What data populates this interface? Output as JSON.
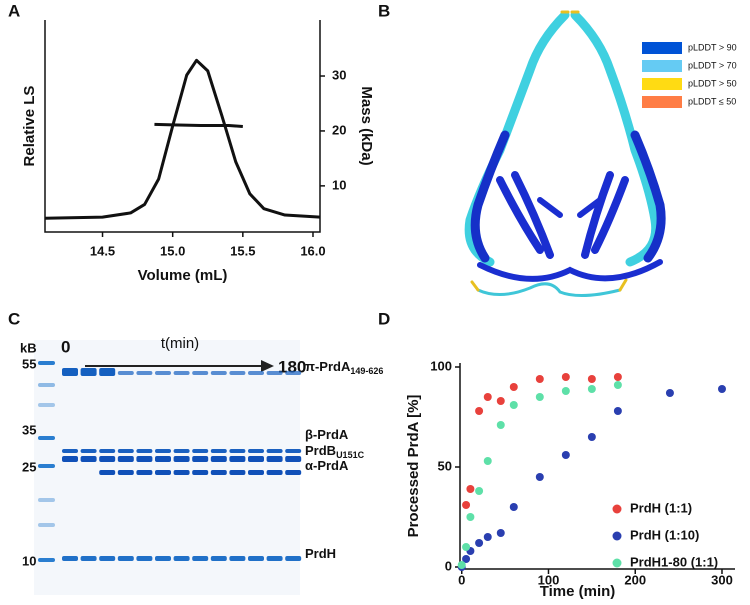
{
  "panels": [
    "A",
    "B",
    "C",
    "D"
  ],
  "chart_data": [
    {
      "type": "line",
      "x_label": "Volume (mL)",
      "y_label": "Relative LS",
      "y2_label": "Mass (kDa)",
      "xlim": [
        14.09,
        16.05
      ],
      "xticks": [
        {
          "value": 14.5,
          "label": "14.5"
        },
        {
          "value": 15.0,
          "label": "15.0"
        },
        15.5,
        {
          "value": 16.0,
          "label": "16.0"
        }
      ],
      "ylim": [
        0,
        1
      ],
      "y2lim": [
        1.6,
        40.2
      ],
      "y2ticks": [
        10,
        20,
        30
      ],
      "color": "#111111",
      "series": [
        {
          "x": [
            14.09,
            14.5,
            14.7,
            14.8,
            14.9,
            15.0,
            15.1,
            15.17,
            15.25,
            15.35,
            15.45,
            15.55,
            15.65,
            15.8,
            16.05
          ],
          "values": [
            0.065,
            0.07,
            0.09,
            0.13,
            0.25,
            0.5,
            0.74,
            0.81,
            0.76,
            0.55,
            0.33,
            0.18,
            0.11,
            0.08,
            0.07
          ]
        },
        {
          "axis": "y2",
          "x": [
            14.87,
            15.0,
            15.2,
            15.4,
            15.5
          ],
          "values": [
            21.2,
            21.1,
            21.0,
            21.0,
            20.8
          ]
        }
      ]
    },
    {
      "type": "scatter",
      "x_label": "Time (min)",
      "y_label": "Processed PrdA [%]",
      "xlim": [
        -2,
        315
      ],
      "xticks": [
        0,
        100,
        200,
        300
      ],
      "ylim": [
        -1,
        102
      ],
      "yticks": [
        0,
        50,
        100
      ],
      "series": [
        {
          "name": "PrdH (1:1)",
          "color": "#e8413c",
          "x": [
            5,
            10,
            20,
            30,
            45,
            60,
            90,
            120,
            150,
            180
          ],
          "values": [
            31,
            39,
            78,
            85,
            83,
            90,
            94,
            95,
            94,
            95
          ]
        },
        {
          "name": "PrdH (1:10)",
          "color": "#2a3fb0",
          "x": [
            0,
            5,
            10,
            20,
            30,
            45,
            60,
            90,
            120,
            150,
            180,
            240,
            300
          ],
          "values": [
            0,
            4,
            8,
            12,
            15,
            17,
            30,
            45,
            56,
            65,
            78,
            87,
            89
          ]
        },
        {
          "name": "PrdH1-80 (1:1)",
          "color": "#5ee0a8",
          "x": [
            0,
            5,
            10,
            20,
            30,
            45,
            60,
            90,
            120,
            150,
            180
          ],
          "values": [
            1,
            10,
            25,
            38,
            53,
            71,
            81,
            85,
            88,
            89,
            91
          ]
        }
      ]
    }
  ],
  "structure": {
    "legend": [
      {
        "label": "pLDDT > 90",
        "color": "#0053d6"
      },
      {
        "label": "pLDDT > 70",
        "color": "#65cbf3"
      },
      {
        "label": "pLDDT > 50",
        "color": "#ffdb13"
      },
      {
        "label": "pLDDT ≤ 50",
        "color": "#ff7d45"
      }
    ]
  },
  "gel": {
    "unit": "kB",
    "time_label": "t(min)",
    "start": "0",
    "end": "180",
    "markers": [
      "55",
      "35",
      "25",
      "10"
    ],
    "bands": [
      {
        "name": "π-PrdA",
        "sub": "149-626"
      },
      {
        "name": "β-PrdA"
      },
      {
        "name": "PrdB",
        "sub": "U151C"
      },
      {
        "name": "α-PrdA"
      },
      {
        "name": "PrdH"
      }
    ]
  }
}
